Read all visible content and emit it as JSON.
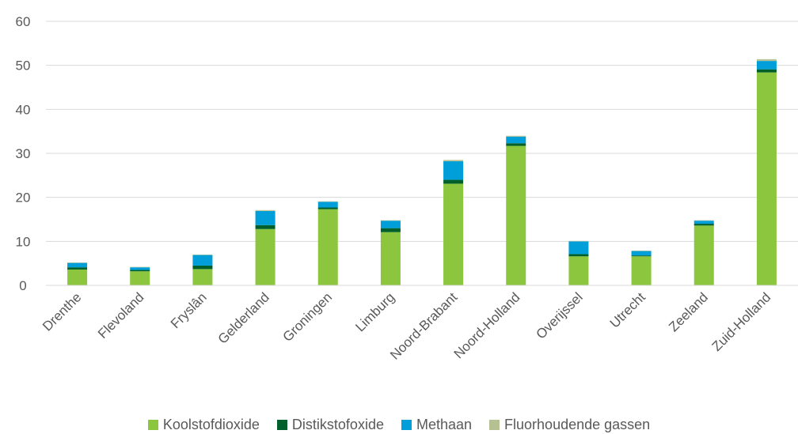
{
  "chart_data": {
    "type": "bar",
    "stacked": true,
    "categories": [
      "Drenthe",
      "Flevoland",
      "Fryslân",
      "Gelderland",
      "Groningen",
      "Limburg",
      "Noord-Brabant",
      "Noord-Holland",
      "Overijssel",
      "Utrecht",
      "Zeeland",
      "Zuid-Holland"
    ],
    "series": [
      {
        "name": "Koolstofdioxide",
        "color": "#8cc63f",
        "values": [
          3.6,
          3.2,
          3.7,
          12.8,
          17.3,
          12.1,
          23.1,
          31.7,
          6.6,
          6.6,
          13.6,
          48.4
        ]
      },
      {
        "name": "Distikstofoxide",
        "color": "#00602b",
        "values": [
          0.5,
          0.3,
          0.8,
          0.9,
          0.4,
          0.9,
          0.9,
          0.6,
          0.5,
          0.2,
          0.4,
          0.7
        ]
      },
      {
        "name": "Methaan",
        "color": "#009fda",
        "values": [
          1.0,
          0.6,
          2.4,
          3.2,
          1.3,
          1.7,
          4.2,
          1.5,
          2.9,
          1.0,
          0.7,
          1.9
        ]
      },
      {
        "name": "Fluorhoudende gassen",
        "color": "#b5c193",
        "values": [
          0.1,
          0.1,
          0.1,
          0.2,
          0.1,
          0.1,
          0.3,
          0.2,
          0.1,
          0.1,
          0.1,
          0.4
        ]
      }
    ],
    "y_ticks": [
      "0",
      "10",
      "20",
      "30",
      "40",
      "50",
      "60"
    ],
    "ylim": [
      0,
      60
    ],
    "grid": true,
    "legend_position": "bottom"
  }
}
